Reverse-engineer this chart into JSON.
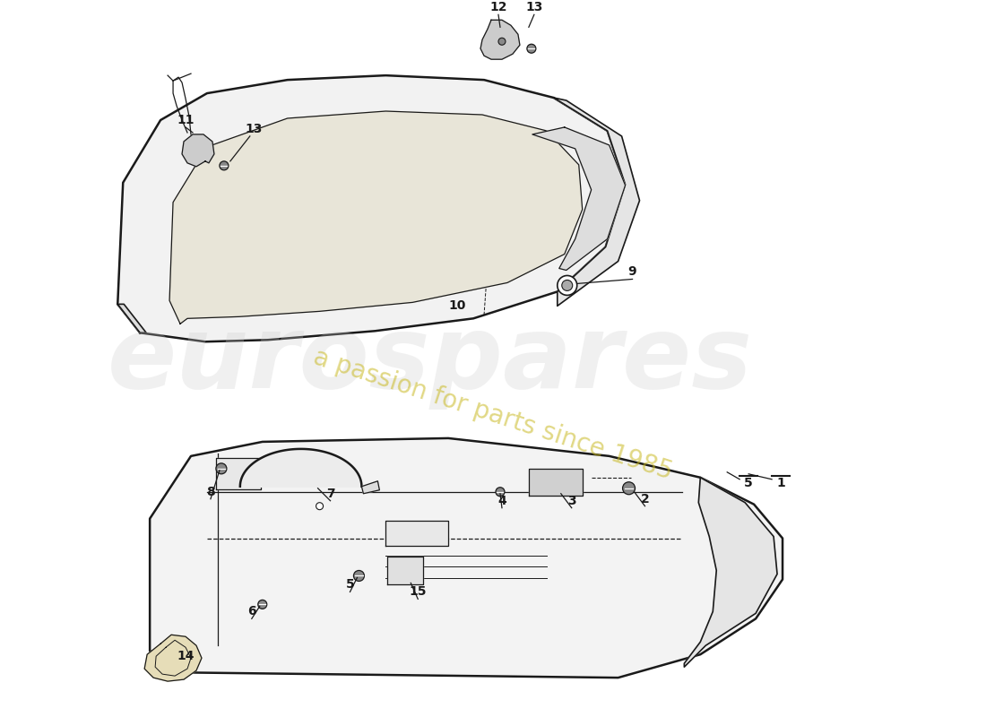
{
  "bg_color": "#ffffff",
  "line_color": "#1a1a1a",
  "label_color": "#1a1a1a",
  "wm1": "eurospares",
  "wm2": "a passion for parts since 1985",
  "wm1_color": "#cccccc",
  "wm2_color": "#c8b820"
}
